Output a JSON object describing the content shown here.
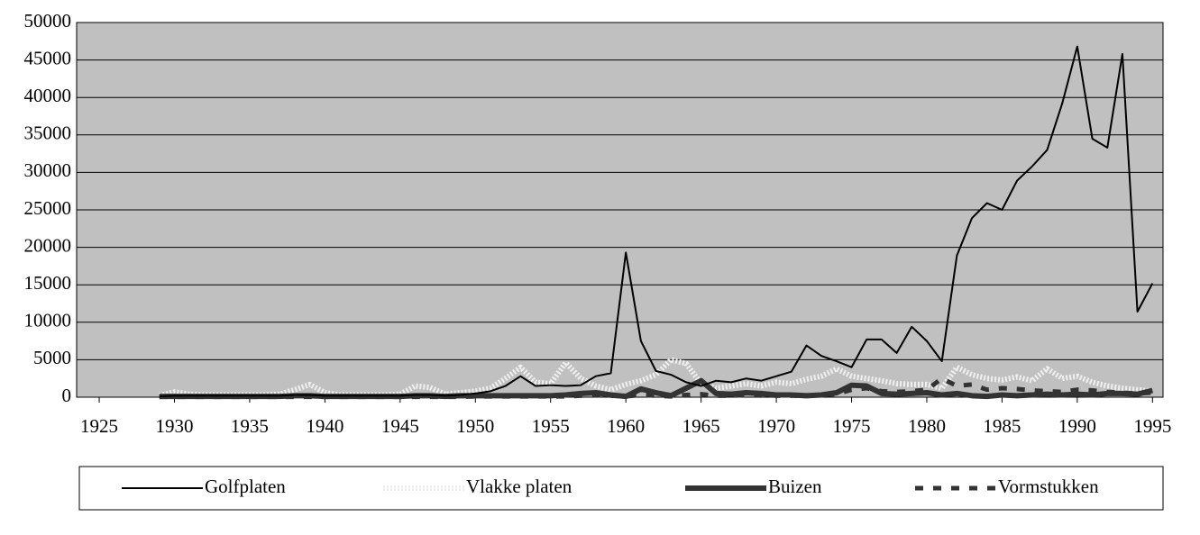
{
  "chart_data": {
    "type": "line",
    "x": [
      1929,
      1930,
      1931,
      1932,
      1933,
      1934,
      1935,
      1936,
      1937,
      1938,
      1939,
      1940,
      1941,
      1942,
      1943,
      1944,
      1945,
      1946,
      1947,
      1948,
      1949,
      1950,
      1951,
      1952,
      1953,
      1954,
      1955,
      1956,
      1957,
      1958,
      1959,
      1960,
      1961,
      1962,
      1963,
      1964,
      1965,
      1966,
      1967,
      1968,
      1969,
      1970,
      1971,
      1972,
      1973,
      1974,
      1975,
      1976,
      1977,
      1978,
      1979,
      1980,
      1981,
      1982,
      1983,
      1984,
      1985,
      1986,
      1987,
      1988,
      1989,
      1990,
      1991,
      1992,
      1993,
      1994,
      1995
    ],
    "series": [
      {
        "name": "Golfplaten",
        "color": "#000000",
        "line_style": "thin",
        "values": [
          100,
          200,
          200,
          200,
          200,
          200,
          200,
          200,
          200,
          300,
          300,
          200,
          200,
          200,
          200,
          200,
          200,
          300,
          300,
          200,
          300,
          500,
          800,
          1500,
          2800,
          1500,
          1600,
          1500,
          1600,
          2800,
          3200,
          19300,
          7500,
          3500,
          3000,
          2000,
          1500,
          2200,
          2000,
          2500,
          2200,
          2800,
          3400,
          6900,
          5500,
          4800,
          4000,
          7700,
          7700,
          5900,
          9400,
          7500,
          4800,
          18900,
          23900,
          25900,
          25000,
          28900,
          30800,
          33000,
          39200,
          46800,
          34500,
          33300,
          45800,
          11400,
          15200
        ]
      },
      {
        "name": "Vlakke platen",
        "color": "#f0f0f0",
        "line_style": "dotted",
        "values": [
          200,
          700,
          400,
          300,
          300,
          300,
          300,
          300,
          400,
          1000,
          1700,
          600,
          300,
          300,
          300,
          300,
          400,
          1500,
          1300,
          400,
          600,
          800,
          1200,
          2500,
          4000,
          2000,
          1800,
          4600,
          2500,
          1500,
          1000,
          1700,
          2200,
          3000,
          5000,
          4500,
          1800,
          1200,
          1500,
          1800,
          1500,
          2000,
          1800,
          2400,
          2800,
          3800,
          2800,
          2500,
          2200,
          1800,
          1700,
          1700,
          1200,
          4000,
          3000,
          2500,
          2300,
          2700,
          2200,
          3800,
          2500,
          2800,
          2000,
          1500,
          1200,
          1000,
          800
        ]
      },
      {
        "name": "Buizen",
        "color": "#333333",
        "line_style": "thick",
        "values": [
          100,
          100,
          100,
          100,
          100,
          100,
          100,
          100,
          100,
          200,
          200,
          100,
          100,
          100,
          100,
          100,
          100,
          200,
          200,
          100,
          200,
          200,
          200,
          200,
          200,
          200,
          200,
          300,
          500,
          600,
          300,
          100,
          1100,
          600,
          200,
          1200,
          2200,
          500,
          400,
          600,
          500,
          300,
          300,
          200,
          300,
          600,
          1600,
          1500,
          500,
          400,
          500,
          600,
          300,
          500,
          200,
          100,
          300,
          200,
          300,
          400,
          300,
          400,
          300,
          500,
          500,
          400,
          900
        ]
      },
      {
        "name": "Vormstukken",
        "color": "#333333",
        "line_style": "dashed",
        "values": [
          50,
          50,
          50,
          50,
          50,
          50,
          50,
          50,
          50,
          50,
          50,
          50,
          50,
          50,
          50,
          50,
          50,
          50,
          50,
          50,
          50,
          100,
          100,
          100,
          100,
          100,
          100,
          100,
          200,
          300,
          200,
          100,
          300,
          200,
          100,
          300,
          400,
          200,
          200,
          300,
          300,
          200,
          200,
          200,
          300,
          400,
          1000,
          1200,
          800,
          700,
          800,
          1000,
          2500,
          1500,
          1700,
          1000,
          1200,
          1100,
          900,
          800,
          700,
          1000,
          900,
          700,
          600,
          500,
          600
        ]
      }
    ],
    "xlim": [
      1923.5,
      1995.7
    ],
    "xticks": [
      1925,
      1930,
      1935,
      1940,
      1945,
      1950,
      1955,
      1960,
      1965,
      1970,
      1975,
      1980,
      1985,
      1990,
      1995
    ],
    "ylim": [
      0,
      50000
    ],
    "yticks": [
      0,
      5000,
      10000,
      15000,
      20000,
      25000,
      30000,
      35000,
      40000,
      45000,
      50000
    ],
    "grid": true,
    "background": "#c0c0c0",
    "legend": "bottom"
  }
}
